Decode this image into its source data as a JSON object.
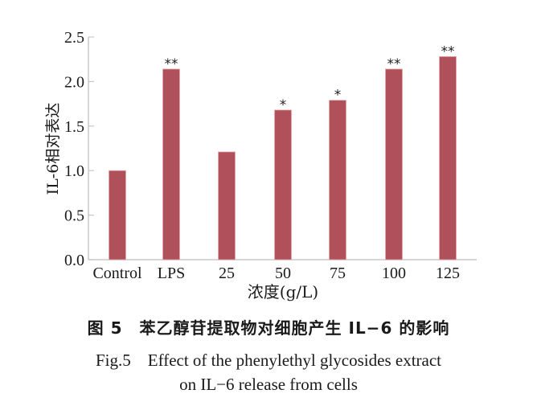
{
  "chart_data": {
    "type": "bar",
    "title": "",
    "categories": [
      "Control",
      "LPS",
      "25",
      "50",
      "75",
      "100",
      "125"
    ],
    "values": [
      1.0,
      2.14,
      1.21,
      1.68,
      1.79,
      2.14,
      2.28
    ],
    "significance": [
      "",
      "**",
      "",
      "*",
      "*",
      "**",
      "**"
    ],
    "xlabel": "浓度(g/L)",
    "ylabel": "IL-6相对表达",
    "ylim": [
      0,
      2.5
    ],
    "yticks": [
      "0.0",
      "0.5",
      "1.0",
      "1.5",
      "2.0",
      "2.5"
    ],
    "grid": false,
    "legend": null,
    "bar_color": "#B0505A",
    "axis_color": "#C8C8C8"
  },
  "caption": {
    "cn": "图 5　苯乙醇苷提取物对细胞产生 IL−6 的影响",
    "en_line1": "Fig.5　Effect of the phenylethyl glycosides extract",
    "en_line2": "on IL−6 release from cells"
  }
}
